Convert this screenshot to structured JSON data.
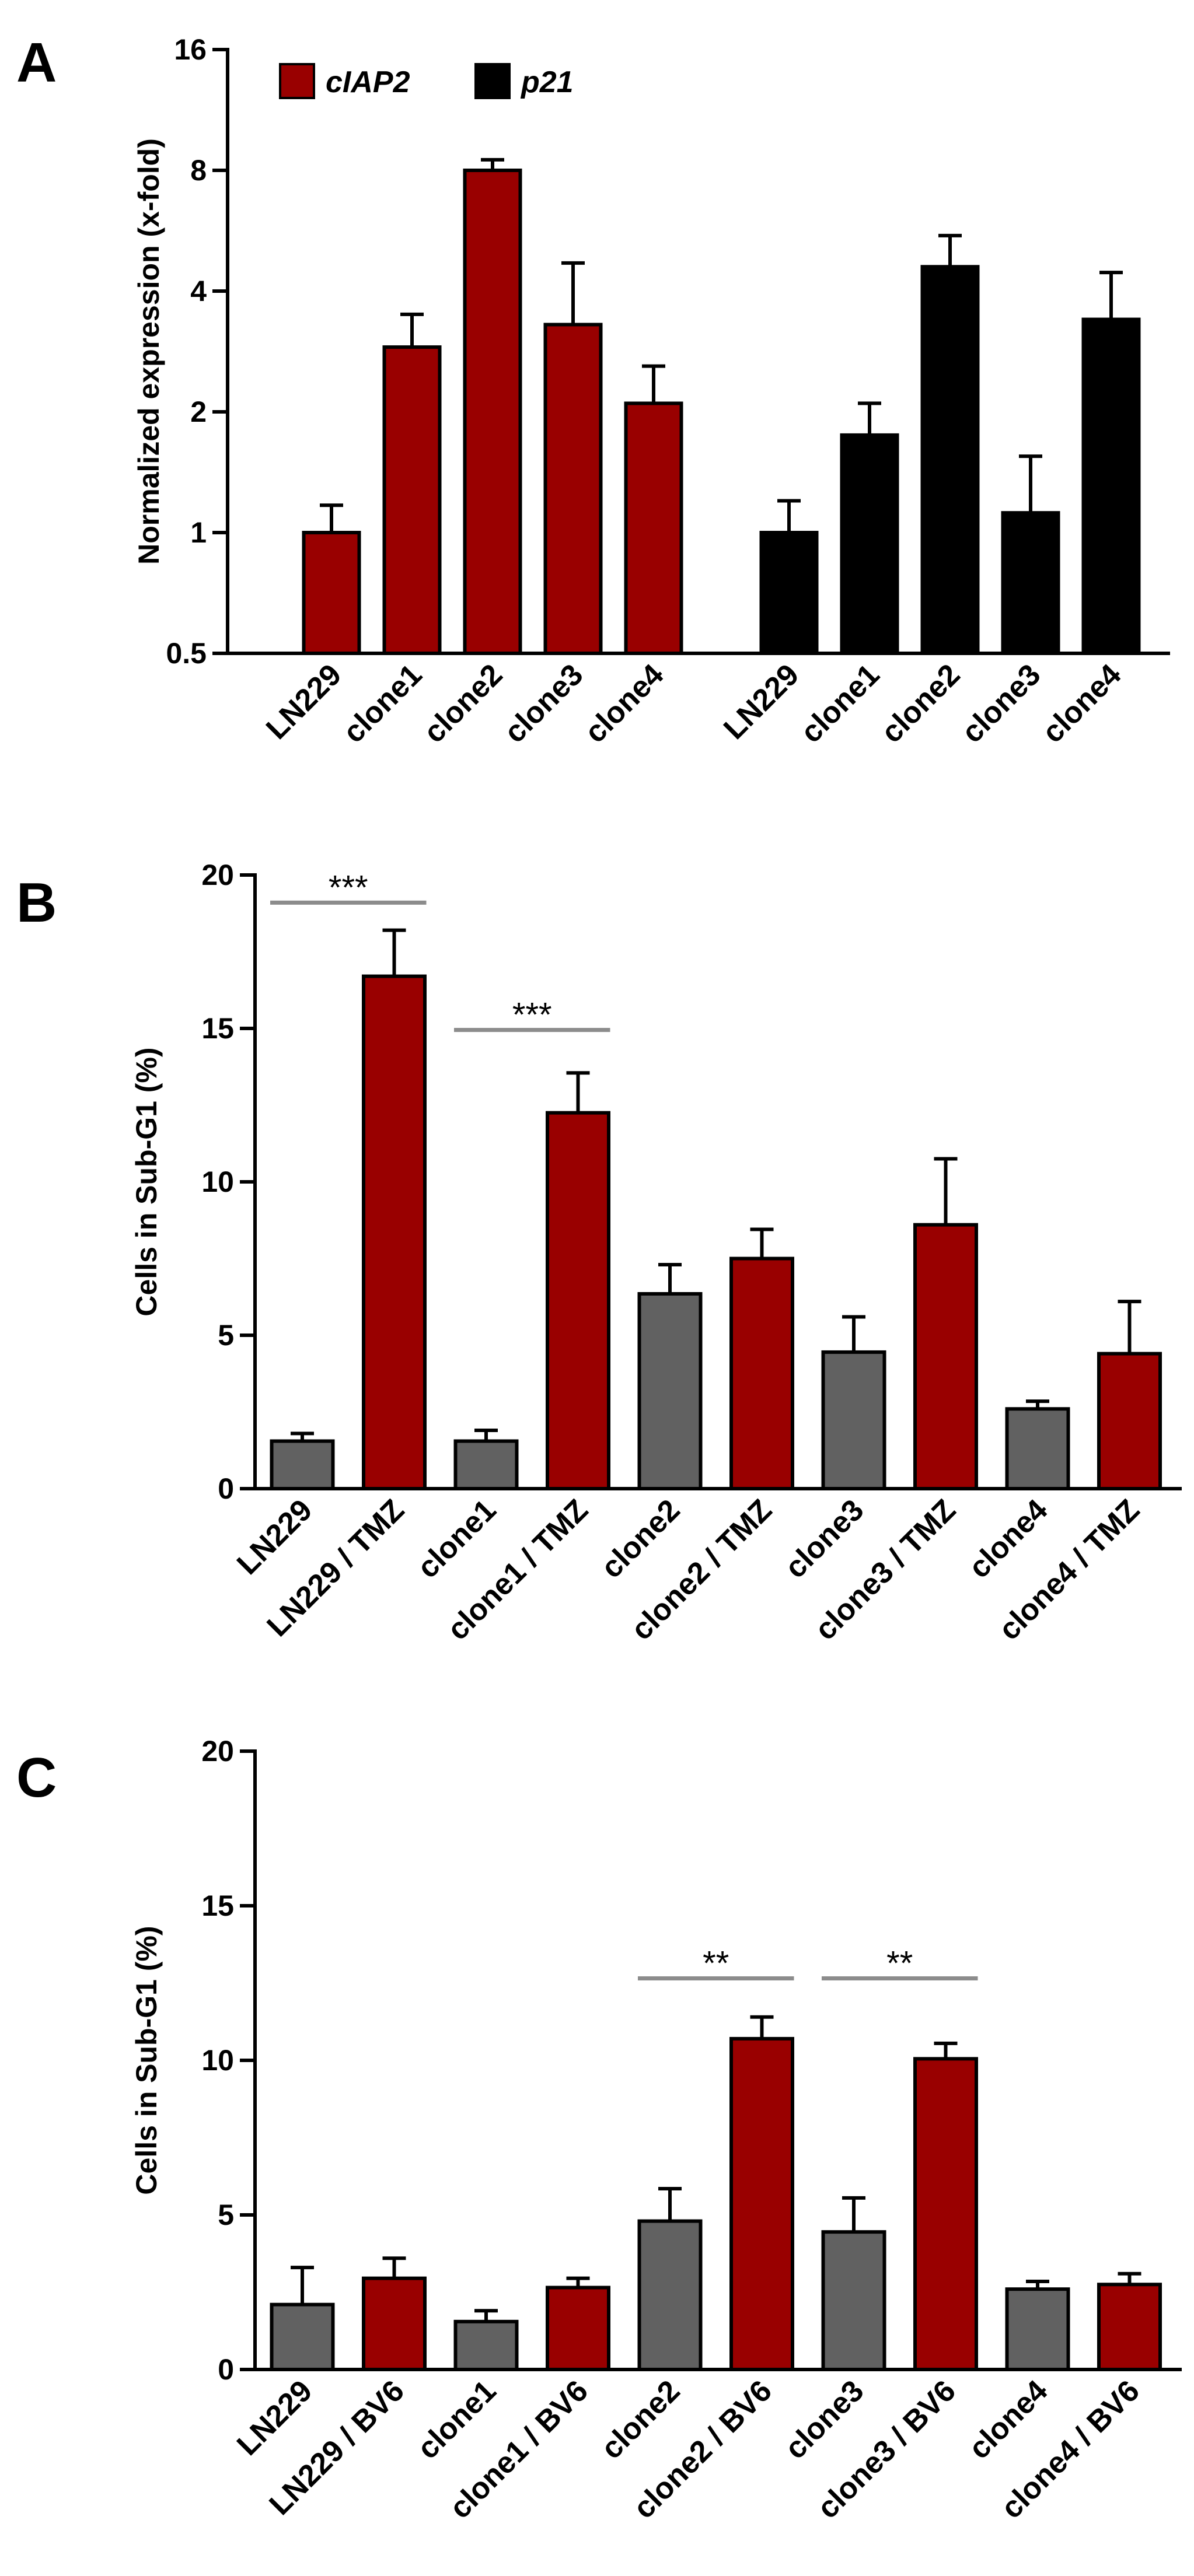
{
  "colors": {
    "red": "#990000",
    "black": "#000000",
    "gray": "#616161",
    "sig_line": "#8c8c8c"
  },
  "chart_data": [
    {
      "panel": "A",
      "type": "bar",
      "yscale": "log2",
      "ylabel": "Normalized expression (x-fold)",
      "ylim": [
        0.5,
        16
      ],
      "yticks": [
        0.5,
        1,
        2,
        4,
        8,
        16
      ],
      "ytick_labels": [
        "0.5",
        "1",
        "2",
        "4",
        "8",
        "16"
      ],
      "legend": [
        {
          "label": "cIAP2",
          "color": "#990000"
        },
        {
          "label": "p21",
          "color": "#000000"
        }
      ],
      "legend_position": "top-left",
      "groups": [
        {
          "name": "cIAP2",
          "color": "#990000",
          "categories": [
            "LN229",
            "clone1",
            "clone2",
            "clone3",
            "clone4"
          ],
          "values": [
            1.0,
            2.9,
            8.0,
            3.3,
            2.1
          ],
          "errors_upper": [
            1.17,
            3.5,
            8.5,
            4.7,
            2.6
          ]
        },
        {
          "name": "p21",
          "color": "#000000",
          "categories": [
            "LN229",
            "clone1",
            "clone2",
            "clone3",
            "clone4"
          ],
          "values": [
            1.0,
            1.75,
            4.6,
            1.12,
            3.4
          ],
          "errors_upper": [
            1.2,
            2.1,
            5.5,
            1.55,
            4.45
          ]
        }
      ],
      "significance": []
    },
    {
      "panel": "B",
      "type": "bar",
      "ylabel": "Cells in Sub-G1 (%)",
      "ylim": [
        0,
        20
      ],
      "yticks": [
        0,
        5,
        10,
        15,
        20
      ],
      "ytick_labels": [
        "0",
        "5",
        "10",
        "15",
        "20"
      ],
      "categories": [
        "LN229",
        "LN229 / TMZ",
        "clone1",
        "clone1 / TMZ",
        "clone2",
        "clone2 / TMZ",
        "clone3",
        "clone3 / TMZ",
        "clone4",
        "clone4 / TMZ"
      ],
      "values": [
        1.55,
        16.7,
        1.55,
        12.25,
        6.35,
        7.5,
        4.45,
        8.6,
        2.6,
        4.4
      ],
      "errors": [
        0.25,
        1.5,
        0.35,
        1.3,
        0.95,
        0.95,
        1.15,
        2.15,
        0.25,
        1.7
      ],
      "bar_colors": [
        "#616161",
        "#990000",
        "#616161",
        "#990000",
        "#616161",
        "#990000",
        "#616161",
        "#990000",
        "#616161",
        "#990000"
      ],
      "significance": [
        {
          "from": 0,
          "to": 1,
          "label": "***",
          "y": 19.1
        },
        {
          "from": 2,
          "to": 3,
          "label": "***",
          "y": 14.95
        }
      ]
    },
    {
      "panel": "C",
      "type": "bar",
      "ylabel": "Cells in Sub-G1 (%)",
      "ylim": [
        0,
        20
      ],
      "yticks": [
        0,
        5,
        10,
        15,
        20
      ],
      "ytick_labels": [
        "0",
        "5",
        "10",
        "15",
        "20"
      ],
      "categories": [
        "LN229",
        "LN229 / BV6",
        "clone1",
        "clone1 / BV6",
        "clone2",
        "clone2 / BV6",
        "clone3",
        "clone3 / BV6",
        "clone4",
        "clone4 / BV6"
      ],
      "values": [
        2.1,
        2.95,
        1.55,
        2.65,
        4.8,
        10.7,
        4.45,
        10.05,
        2.6,
        2.75
      ],
      "errors": [
        1.2,
        0.65,
        0.35,
        0.3,
        1.05,
        0.7,
        1.1,
        0.5,
        0.25,
        0.35
      ],
      "bar_colors": [
        "#616161",
        "#990000",
        "#616161",
        "#990000",
        "#616161",
        "#990000",
        "#616161",
        "#990000",
        "#616161",
        "#990000"
      ],
      "significance": [
        {
          "from": 4,
          "to": 5,
          "label": "**",
          "y": 12.65
        },
        {
          "from": 6,
          "to": 7,
          "label": "**",
          "y": 12.65
        }
      ]
    }
  ]
}
